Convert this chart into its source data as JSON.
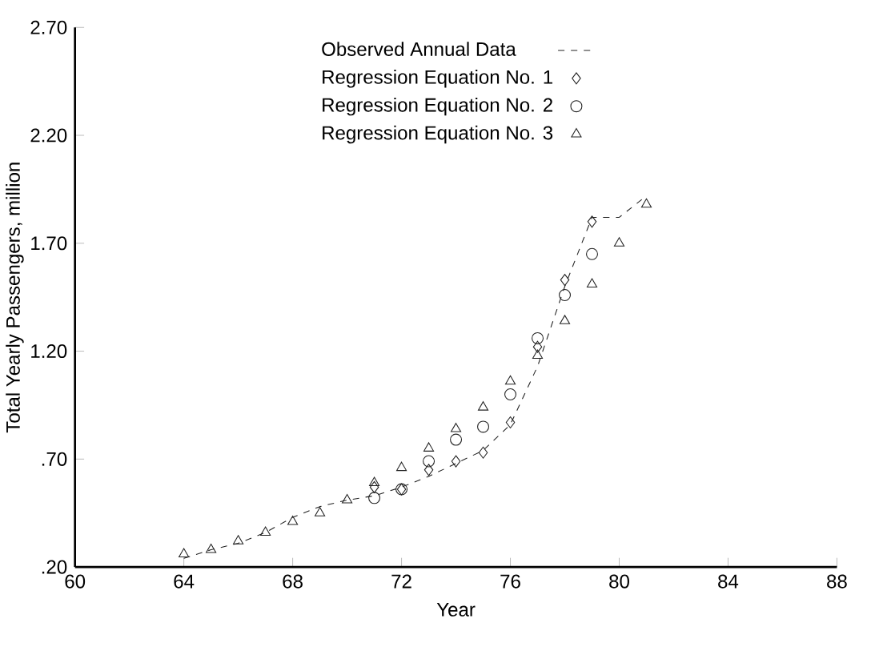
{
  "chart_data": {
    "type": "scatter",
    "xlabel": "Year",
    "ylabel": "Total Yearly Passengers, million",
    "xlim": [
      60,
      88
    ],
    "xticks": [
      60,
      64,
      68,
      72,
      76,
      80,
      84,
      88
    ],
    "ylim": [
      0.2,
      2.7
    ],
    "yticks": [
      {
        "value": 0.2,
        "label": ".20"
      },
      {
        "value": 0.7,
        "label": ".70"
      },
      {
        "value": 1.2,
        "label": "1.20"
      },
      {
        "value": 1.7,
        "label": "1.70"
      },
      {
        "value": 2.2,
        "label": "2.20"
      },
      {
        "value": 2.7,
        "label": "2.70"
      }
    ],
    "legend": "top",
    "grid": false,
    "series": [
      {
        "name": "Observed Annual Data",
        "type": "line",
        "line_style": "dashed",
        "marker": "none",
        "color": "#222222",
        "x": [
          64,
          65,
          66,
          67,
          68,
          69,
          70,
          71,
          72,
          73,
          74,
          75,
          76,
          77,
          78,
          79,
          80,
          81
        ],
        "values": [
          0.24,
          0.28,
          0.31,
          0.36,
          0.43,
          0.48,
          0.51,
          0.53,
          0.57,
          0.62,
          0.68,
          0.74,
          0.86,
          1.13,
          1.5,
          1.82,
          1.82,
          1.92
        ]
      },
      {
        "name": "Regression Equation No. 1",
        "marker": "diamond",
        "color": "#222222",
        "x": [
          71,
          72,
          73,
          74,
          75,
          76,
          77,
          78,
          79
        ],
        "values": [
          0.57,
          0.56,
          0.65,
          0.69,
          0.73,
          0.87,
          1.22,
          1.53,
          1.8
        ]
      },
      {
        "name": "Regression Equation No. 2",
        "marker": "circle",
        "color": "#222222",
        "x": [
          71,
          72,
          73,
          74,
          75,
          76,
          77,
          78,
          79
        ],
        "values": [
          0.52,
          0.56,
          0.69,
          0.79,
          0.85,
          1.0,
          1.26,
          1.46,
          1.65
        ]
      },
      {
        "name": "Regression Equation No. 3",
        "marker": "triangle",
        "color": "#222222",
        "x": [
          64,
          65,
          66,
          67,
          68,
          69,
          70,
          71,
          72,
          73,
          74,
          75,
          76,
          77,
          78,
          79,
          80,
          81
        ],
        "values": [
          0.26,
          0.28,
          0.32,
          0.36,
          0.41,
          0.45,
          0.51,
          0.59,
          0.66,
          0.75,
          0.84,
          0.94,
          1.06,
          1.18,
          1.34,
          1.51,
          1.7,
          1.88
        ]
      }
    ]
  }
}
